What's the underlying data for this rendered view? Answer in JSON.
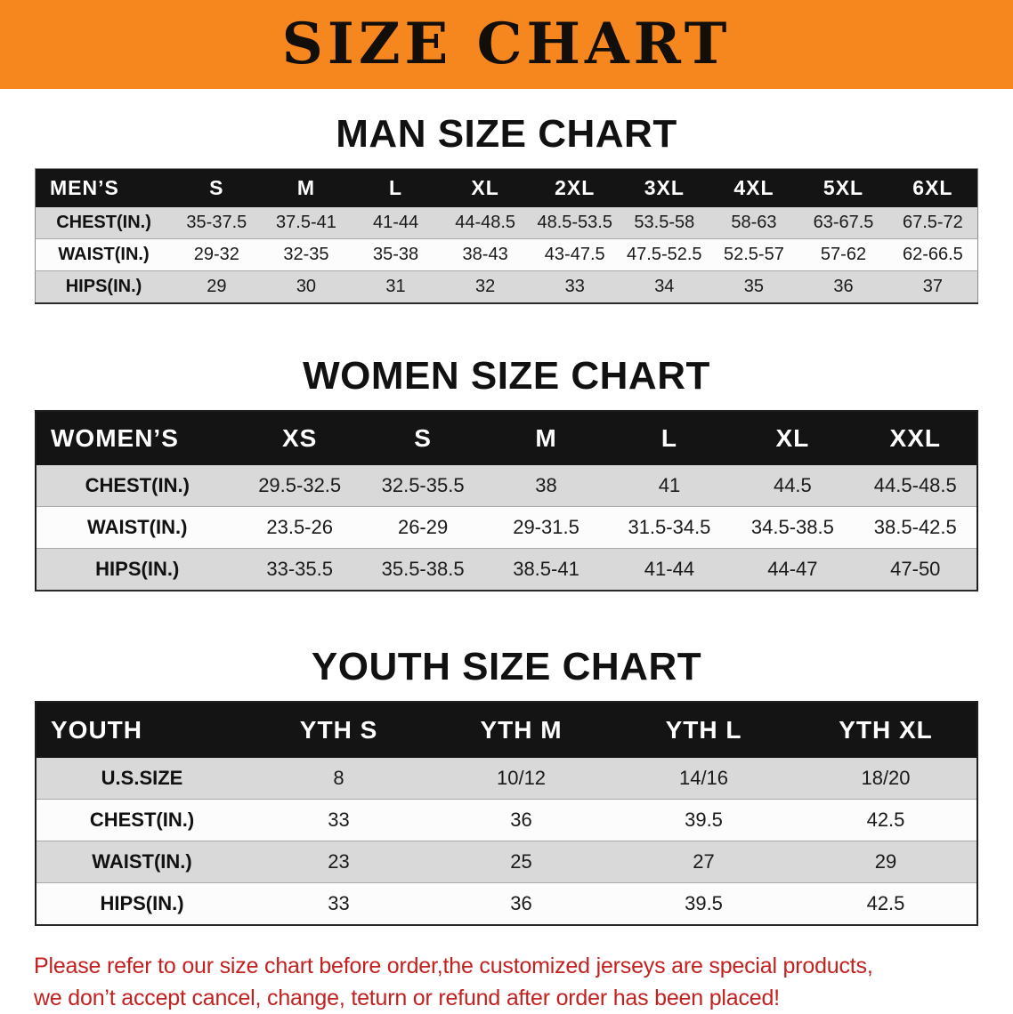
{
  "banner": {
    "title": "SIZE CHART"
  },
  "colors": {
    "banner_orange": "#F6861E",
    "table_header_black": "#141414",
    "row_gray": "#d9d9d9",
    "row_white": "#fcfcfc",
    "note_red": "#C42020"
  },
  "sections": [
    {
      "heading": "MAN SIZE CHART",
      "table": {
        "header": [
          "MEN’S",
          "S",
          "M",
          "L",
          "XL",
          "2XL",
          "3XL",
          "4XL",
          "5XL",
          "6XL"
        ],
        "rows": [
          [
            "CHEST(IN.)",
            "35-37.5",
            "37.5-41",
            "41-44",
            "44-48.5",
            "48.5-53.5",
            "53.5-58",
            "58-63",
            "63-67.5",
            "67.5-72"
          ],
          [
            "WAIST(IN.)",
            "29-32",
            "32-35",
            "35-38",
            "38-43",
            "43-47.5",
            "47.5-52.5",
            "52.5-57",
            "57-62",
            "62-66.5"
          ],
          [
            "HIPS(IN.)",
            "29",
            "30",
            "31",
            "32",
            "33",
            "34",
            "35",
            "36",
            "37"
          ]
        ]
      }
    },
    {
      "heading": "WOMEN SIZE CHART",
      "table": {
        "header": [
          "WOMEN’S",
          "XS",
          "S",
          "M",
          "L",
          "XL",
          "XXL"
        ],
        "rows": [
          [
            "CHEST(IN.)",
            "29.5-32.5",
            "32.5-35.5",
            "38",
            "41",
            "44.5",
            "44.5-48.5"
          ],
          [
            "WAIST(IN.)",
            "23.5-26",
            "26-29",
            "29-31.5",
            "31.5-34.5",
            "34.5-38.5",
            "38.5-42.5"
          ],
          [
            "HIPS(IN.)",
            "33-35.5",
            "35.5-38.5",
            "38.5-41",
            "41-44",
            "44-47",
            "47-50"
          ]
        ]
      }
    },
    {
      "heading": "YOUTH SIZE CHART",
      "table": {
        "header": [
          "YOUTH",
          "YTH S",
          "YTH M",
          "YTH L",
          "YTH XL"
        ],
        "rows": [
          [
            "U.S.SIZE",
            "8",
            "10/12",
            "14/16",
            "18/20"
          ],
          [
            "CHEST(IN.)",
            "33",
            "36",
            "39.5",
            "42.5"
          ],
          [
            "WAIST(IN.)",
            "23",
            "25",
            "27",
            "29"
          ],
          [
            "HIPS(IN.)",
            "33",
            "36",
            "39.5",
            "42.5"
          ]
        ]
      }
    }
  ],
  "footer_note": {
    "lines": [
      "Please refer to our size chart before order,the customized jerseys are special products,",
      "we don’t accept cancel, change, teturn or refund after order has been placed!"
    ]
  }
}
